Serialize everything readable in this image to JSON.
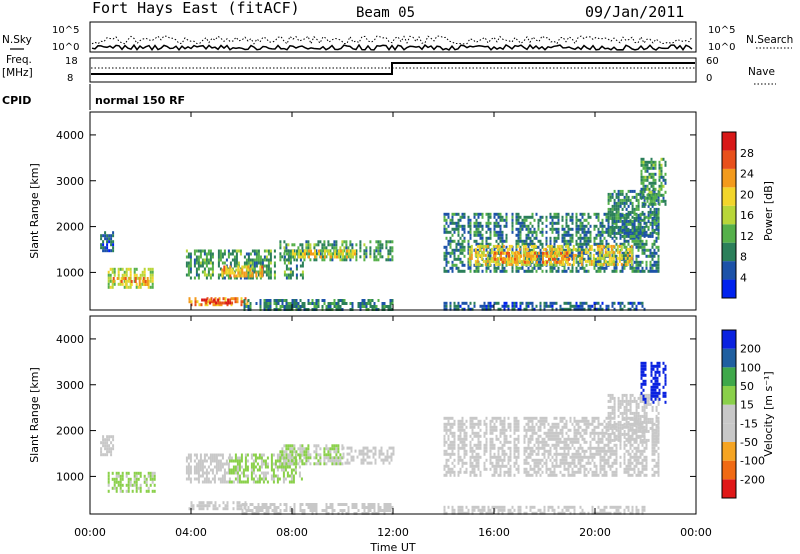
{
  "header": {
    "station": "Fort Hays East (fitACF)",
    "beam": "Beam 05",
    "date": "09/Jan/2011"
  },
  "strip": {
    "nsky_label": "N.Sky",
    "nsearch_label": "N.Search",
    "freq_label": "Freq.",
    "freq_unit": "[MHz]",
    "nave_label": "Nave",
    "cpid_label": "CPID",
    "cpid_value": "normal 150 RF",
    "noise_ticks": [
      "10^5",
      "10^0"
    ],
    "freq_ticks": [
      "18",
      "8"
    ],
    "nave_ticks": [
      "60",
      "0"
    ]
  },
  "chart_data": [
    {
      "type": "heatmap",
      "panel": "power",
      "xlabel": "Time UT",
      "ylabel": "Slant Range [km]",
      "xlim": [
        0,
        24
      ],
      "ylim": [
        180,
        4500
      ],
      "xticks": [
        "00:00",
        "04:00",
        "08:00",
        "12:00",
        "16:00",
        "20:00",
        "00:00"
      ],
      "yticks": [
        "1000",
        "2000",
        "3000",
        "4000"
      ],
      "colorbar": {
        "label": "Power [dB]",
        "ticks": [
          "28",
          "24",
          "20",
          "16",
          "12",
          "8",
          "4"
        ],
        "range": [
          0,
          30
        ],
        "colors": [
          "#0022ee",
          "#1c52a8",
          "#2b7f5a",
          "#55b04a",
          "#b8d639",
          "#f2d52b",
          "#f39a1c",
          "#e8501b",
          "#d81818"
        ]
      },
      "echo_regions": [
        {
          "t0": 0.4,
          "t1": 0.9,
          "r0": 1500,
          "r1": 1900,
          "power": 6
        },
        {
          "t0": 0.7,
          "t1": 2.6,
          "r0": 650,
          "r1": 1100,
          "power": 15
        },
        {
          "t0": 0.9,
          "t1": 2.3,
          "r0": 750,
          "r1": 900,
          "power": 22
        },
        {
          "t0": 3.8,
          "t1": 8.4,
          "r0": 900,
          "r1": 1500,
          "power": 10
        },
        {
          "t0": 5.2,
          "t1": 6.8,
          "r0": 950,
          "r1": 1150,
          "power": 20
        },
        {
          "t0": 7.5,
          "t1": 12.0,
          "r0": 1250,
          "r1": 1700,
          "power": 10
        },
        {
          "t0": 8.0,
          "t1": 10.5,
          "r0": 1350,
          "r1": 1500,
          "power": 18
        },
        {
          "t0": 3.9,
          "t1": 6.2,
          "r0": 280,
          "r1": 460,
          "power": 22
        },
        {
          "t0": 4.4,
          "t1": 5.6,
          "r0": 300,
          "r1": 430,
          "power": 26
        },
        {
          "t0": 6.0,
          "t1": 12.0,
          "r0": 220,
          "r1": 420,
          "power": 8
        },
        {
          "t0": 14.0,
          "t1": 22.5,
          "r0": 1000,
          "r1": 2300,
          "power": 8
        },
        {
          "t0": 15.0,
          "t1": 21.5,
          "r0": 1150,
          "r1": 1600,
          "power": 18
        },
        {
          "t0": 16.0,
          "t1": 19.0,
          "r0": 1250,
          "r1": 1450,
          "power": 22
        },
        {
          "t0": 20.5,
          "t1": 22.5,
          "r0": 1800,
          "r1": 2800,
          "power": 8
        },
        {
          "t0": 21.8,
          "t1": 22.8,
          "r0": 2500,
          "r1": 3500,
          "power": 10
        },
        {
          "t0": 14.0,
          "t1": 22.0,
          "r0": 220,
          "r1": 360,
          "power": 6
        }
      ]
    },
    {
      "type": "heatmap",
      "panel": "velocity",
      "xlabel": "Time UT",
      "ylabel": "Slant Range [km]",
      "xlim": [
        0,
        24
      ],
      "ylim": [
        180,
        4500
      ],
      "xticks": [
        "00:00",
        "04:00",
        "08:00",
        "12:00",
        "16:00",
        "20:00",
        "00:00"
      ],
      "yticks": [
        "1000",
        "2000",
        "3000",
        "4000"
      ],
      "colorbar": {
        "label": "Velocity [m s⁻¹]",
        "ticks": [
          "200",
          "100",
          "50",
          "15",
          "-15",
          "-50",
          "-100",
          "-200"
        ],
        "range": [
          -250,
          250
        ],
        "colors": [
          "#e01818",
          "#f06a14",
          "#f5a422",
          "#c8c8c8",
          "#c8c8c8",
          "#8ad04a",
          "#3fa84a",
          "#1f5fa0",
          "#0a22e0"
        ]
      },
      "echo_regions": [
        {
          "t0": 0.4,
          "t1": 0.9,
          "r0": 1500,
          "r1": 1900,
          "velocity": 0
        },
        {
          "t0": 0.7,
          "t1": 2.6,
          "r0": 650,
          "r1": 1100,
          "velocity": 40
        },
        {
          "t0": 3.8,
          "t1": 5.5,
          "r0": 900,
          "r1": 1500,
          "velocity": 0
        },
        {
          "t0": 5.5,
          "t1": 8.4,
          "r0": 900,
          "r1": 1500,
          "velocity": 35
        },
        {
          "t0": 7.5,
          "t1": 10.0,
          "r0": 1250,
          "r1": 1700,
          "velocity": 30
        },
        {
          "t0": 10.0,
          "t1": 12.0,
          "r0": 1300,
          "r1": 1650,
          "velocity": -30
        },
        {
          "t0": 3.9,
          "t1": 6.2,
          "r0": 280,
          "r1": 460,
          "velocity": 0
        },
        {
          "t0": 6.0,
          "t1": 12.0,
          "r0": 220,
          "r1": 420,
          "velocity": -25
        },
        {
          "t0": 14.0,
          "t1": 22.5,
          "r0": 1000,
          "r1": 2300,
          "velocity": 0
        },
        {
          "t0": 20.5,
          "t1": 22.5,
          "r0": 1800,
          "r1": 2800,
          "velocity": 0
        },
        {
          "t0": 21.8,
          "t1": 22.8,
          "r0": 2600,
          "r1": 3500,
          "velocity": 220
        },
        {
          "t0": 14.0,
          "t1": 22.0,
          "r0": 220,
          "r1": 360,
          "velocity": -30
        }
      ]
    }
  ]
}
